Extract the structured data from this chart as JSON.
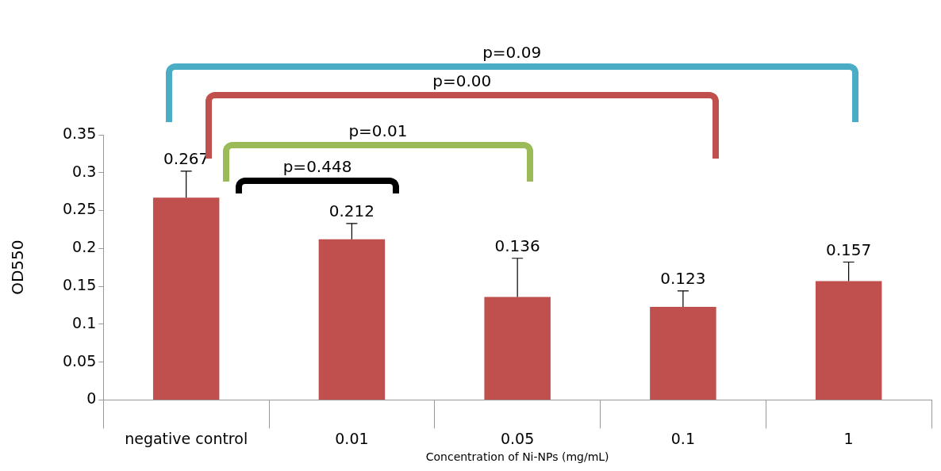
{
  "chart_data": {
    "type": "bar",
    "ylabel": "OD550",
    "xlabel": "Concentration of Ni-NPs (mg/mL)",
    "categories": [
      "negative control",
      "0.01",
      "0.05",
      "0.1",
      "1"
    ],
    "values": [
      0.267,
      0.212,
      0.136,
      0.123,
      0.157
    ],
    "errors": [
      [
        0.267,
        0.302
      ],
      [
        0.212,
        0.233
      ],
      [
        0.136,
        0.187
      ],
      [
        0.123,
        0.144
      ],
      [
        0.157,
        0.182
      ]
    ],
    "color": "#c0504d",
    "ylim": [
      0,
      0.35
    ],
    "yticks": [
      0,
      0.05,
      0.1,
      0.15,
      0.2,
      0.25,
      0.3,
      0.35
    ],
    "grid": false,
    "legend": false,
    "data_labels": true,
    "annotations": [
      "p=0.09",
      "p=0.00",
      "p=0.01",
      "p=0.448"
    ]
  }
}
